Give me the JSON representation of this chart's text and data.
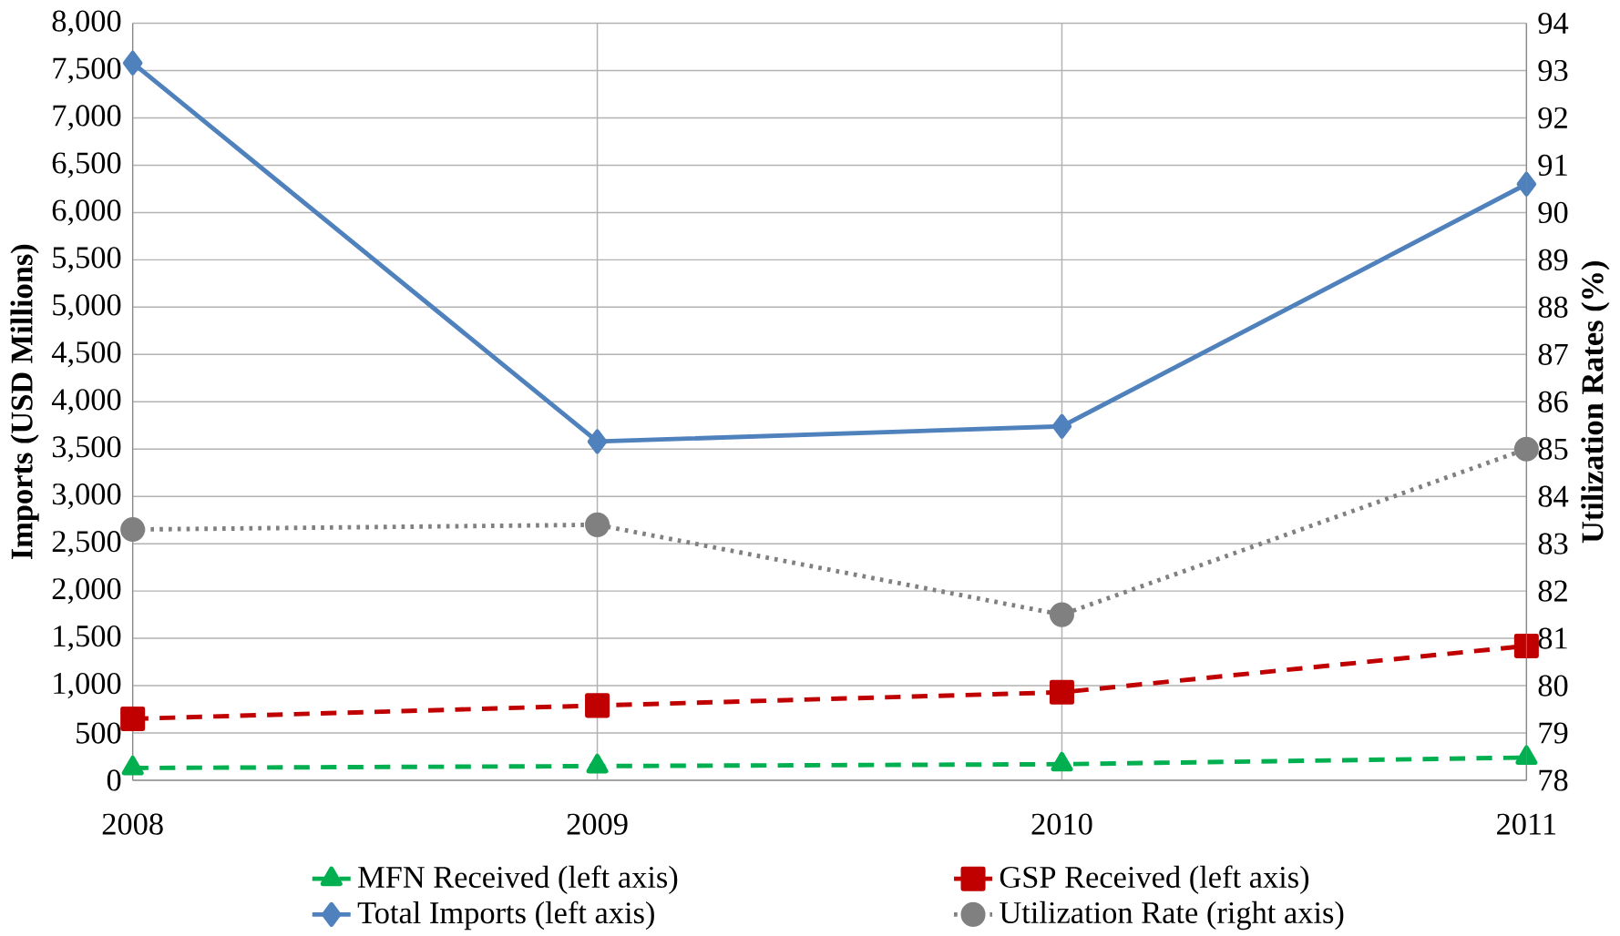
{
  "chart_data": {
    "type": "line",
    "x": [
      2008,
      2009,
      2010,
      2011
    ],
    "xlim": [
      2008,
      2011
    ],
    "xticks": [
      2008,
      2009,
      2010,
      2011
    ],
    "ylabel": "Imports (USD Millions)",
    "y2label": "Utilization Rates (%)",
    "ylim": [
      0,
      8000
    ],
    "yticks": [
      0,
      500,
      {
        "value": 1000,
        "label": "1,000"
      },
      {
        "value": 1500,
        "label": "1,500"
      },
      {
        "value": 2000,
        "label": "2,000"
      },
      {
        "value": 2500,
        "label": "2,500"
      },
      {
        "value": 3000,
        "label": "3,000"
      },
      {
        "value": 3500,
        "label": "3,500"
      },
      {
        "value": 4000,
        "label": "4,000"
      },
      {
        "value": 4500,
        "label": "4,500"
      },
      {
        "value": 5000,
        "label": "5,000"
      },
      {
        "value": 5500,
        "label": "5,500"
      },
      {
        "value": 6000,
        "label": "6,000"
      },
      {
        "value": 6500,
        "label": "6,500"
      },
      {
        "value": 7000,
        "label": "7,000"
      },
      {
        "value": 7500,
        "label": "7,500"
      },
      {
        "value": 8000,
        "label": "8,000"
      }
    ],
    "y2lim": [
      78,
      94
    ],
    "y2ticks": [
      78,
      79,
      80,
      81,
      82,
      83,
      84,
      85,
      86,
      87,
      88,
      89,
      90,
      91,
      92,
      93,
      94
    ],
    "grid": true,
    "legend": "bottom",
    "series": [
      {
        "name": "MFN Received (left axis)",
        "color": "#00b050",
        "values": [
          130,
          150,
          170,
          240
        ],
        "marker": "triangle",
        "line_style": "dashed"
      },
      {
        "name": "GSP Received (left axis)",
        "color": "#c00000",
        "values": [
          650,
          790,
          930,
          1420
        ],
        "marker": "square",
        "line_style": "dashed"
      },
      {
        "name": "Total Imports (left axis)",
        "color": "#4f81bd",
        "values": [
          7580,
          3580,
          3740,
          6300
        ],
        "marker": "diamond",
        "line_style": "solid"
      },
      {
        "name": "Utilization Rate (right axis)",
        "color": "#808080",
        "values": [
          83.3,
          83.4,
          81.5,
          85.0
        ],
        "marker": "circle",
        "line_style": "dotted",
        "axis": "y2"
      }
    ]
  }
}
